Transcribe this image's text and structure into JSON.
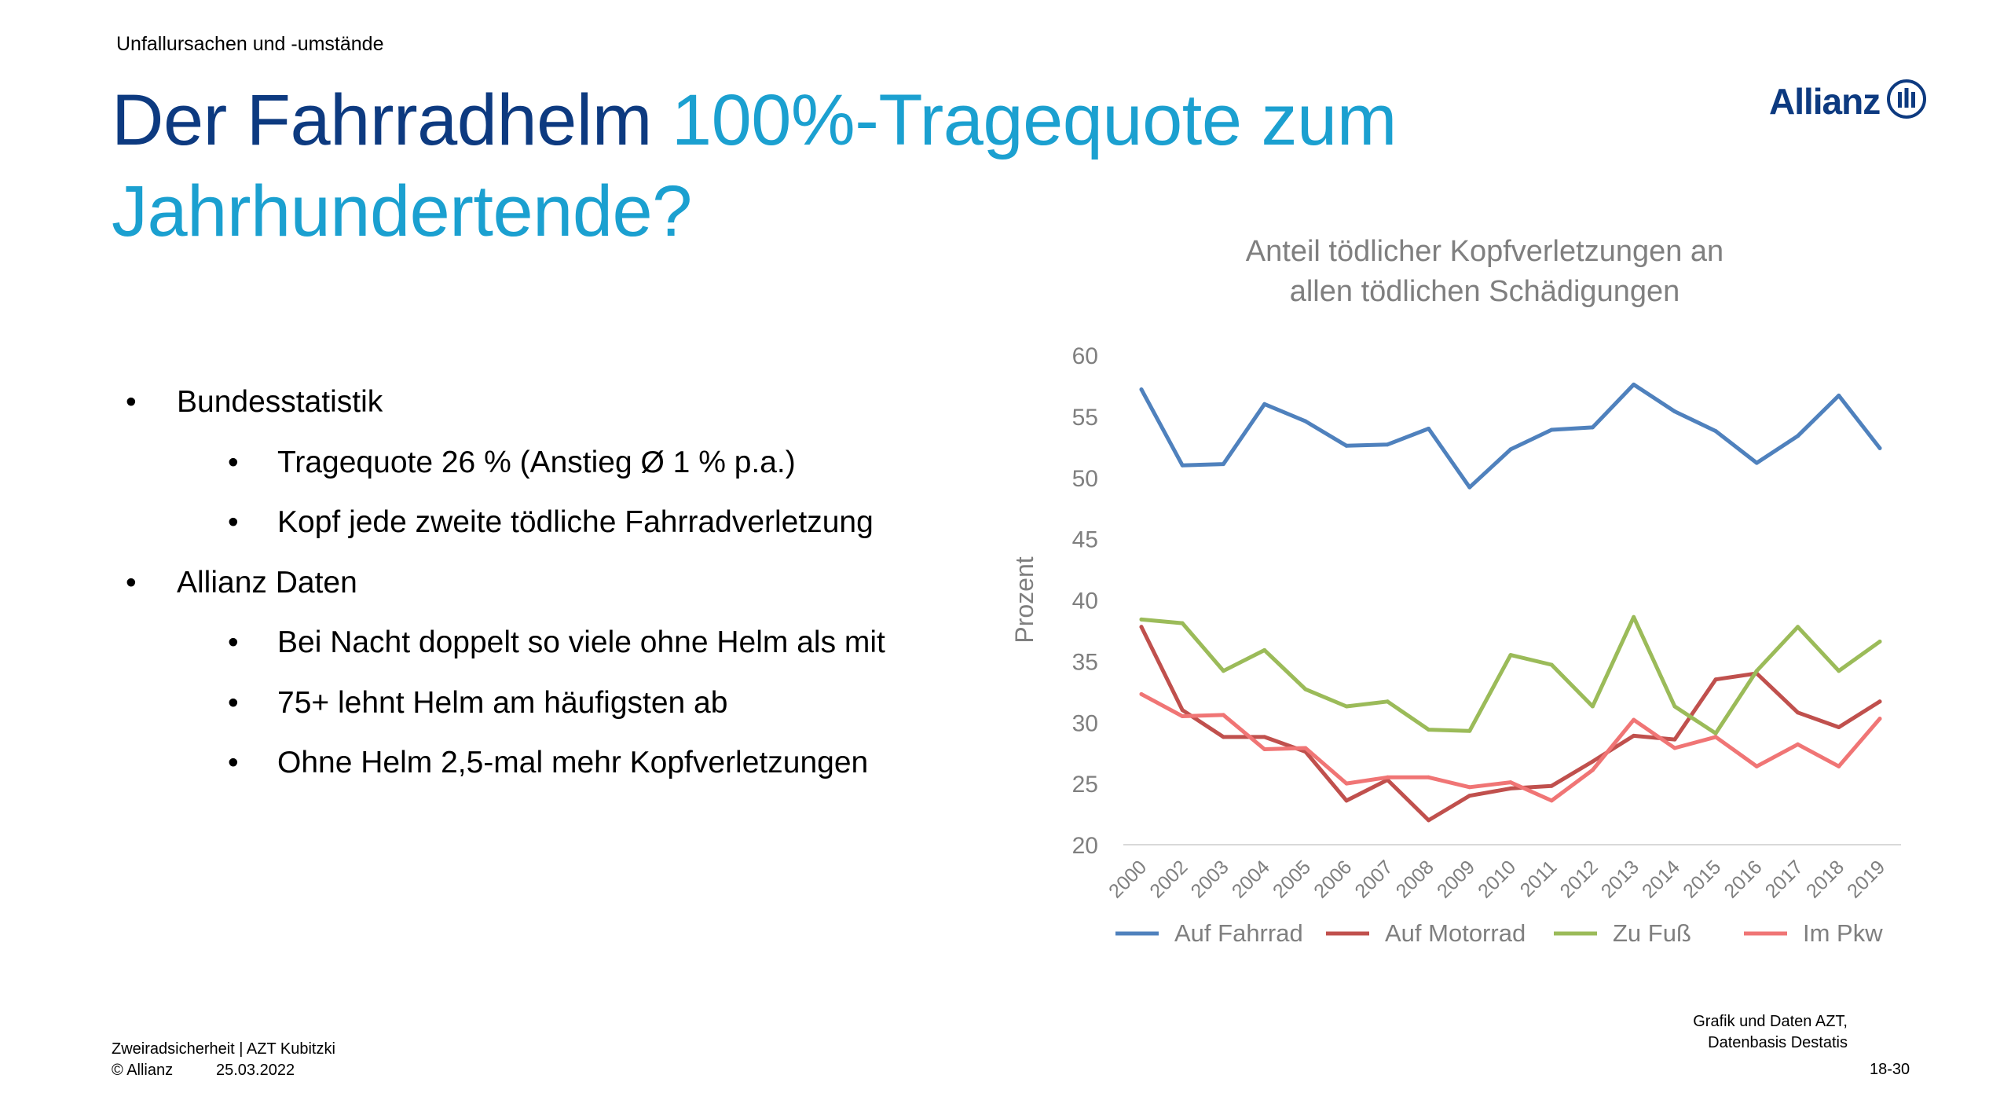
{
  "header": {
    "section_label": "Unfallursachen und -umstände",
    "title_part1": "Der Fahrradhelm ",
    "title_part2": "100%-Tragequote zum",
    "title_part3": "Jahrhundertende?"
  },
  "logo": {
    "text": "Allianz",
    "icon": "allianz-eagle-icon"
  },
  "bullets": [
    {
      "level": 1,
      "text": "Bundesstatistik"
    },
    {
      "level": 2,
      "text": "Tragequote 26 % (Anstieg Ø 1 % p.a.)"
    },
    {
      "level": 2,
      "text": "Kopf jede zweite tödliche Fahrradverletzung"
    },
    {
      "level": 1,
      "text": "Allianz Daten"
    },
    {
      "level": 2,
      "text": "Bei Nacht doppelt so viele ohne Helm als mit"
    },
    {
      "level": 2,
      "text": "75+ lehnt Helm am häufigsten ab"
    },
    {
      "level": 2,
      "text": "Ohne Helm 2,5-mal mehr Kopfverletzungen"
    }
  ],
  "bullet_symbol": "•",
  "chart_data": {
    "type": "line",
    "title": "Anteil tödlicher Kopfverletzungen an allen tödlichen Schädigungen",
    "title_line1": "Anteil tödlicher Kopfverletzungen an",
    "title_line2": "allen tödlichen Schädigungen",
    "xlabel": "",
    "ylabel": "Prozent",
    "ylim": [
      20,
      60
    ],
    "yticks": [
      "20",
      "25",
      "30",
      "35",
      "40",
      "45",
      "50",
      "55",
      "60"
    ],
    "grid": false,
    "legend_position": "bottom",
    "categories": [
      "2000",
      "2002",
      "2003",
      "2004",
      "2005",
      "2006",
      "2007",
      "2008",
      "2009",
      "2010",
      "2011",
      "2012",
      "2013",
      "2014",
      "2015",
      "2016",
      "2017",
      "2018",
      "2019"
    ],
    "series": [
      {
        "name": "Auf Fahrrad",
        "color": "#4f81bd",
        "values": [
          57.2,
          51.0,
          51.1,
          56.0,
          54.6,
          52.6,
          52.7,
          54.0,
          49.2,
          52.3,
          53.9,
          54.1,
          57.6,
          55.4,
          53.8,
          51.2,
          53.4,
          56.7,
          52.4
        ]
      },
      {
        "name": "Auf Motorrad",
        "color": "#c0504d",
        "values": [
          37.8,
          31.0,
          28.8,
          28.8,
          27.6,
          23.6,
          25.3,
          22.0,
          24.0,
          24.6,
          24.8,
          26.8,
          28.9,
          28.6,
          33.5,
          34.0,
          30.8,
          29.6,
          31.7
        ]
      },
      {
        "name": "Zu Fuß",
        "color": "#9bbb59",
        "values": [
          38.4,
          38.1,
          34.2,
          35.9,
          32.7,
          31.3,
          31.7,
          29.4,
          29.3,
          35.5,
          34.7,
          31.3,
          38.6,
          31.3,
          29.1,
          34.2,
          37.8,
          34.2,
          36.6
        ]
      },
      {
        "name": "Im Pkw",
        "color": "#f07575",
        "values": [
          32.3,
          30.5,
          30.6,
          27.8,
          27.9,
          25.0,
          25.5,
          25.5,
          24.7,
          25.1,
          23.6,
          26.1,
          30.2,
          27.9,
          28.8,
          26.4,
          28.2,
          26.4,
          30.3
        ]
      }
    ],
    "axis_color": "#d9d9d9",
    "text_color": "#7f7f7f"
  },
  "footer": {
    "line1": "Zweiradsicherheit | AZT Kubitzki",
    "copyright": "© Allianz",
    "date": "25.03.2022",
    "source_line1": "Grafik und Daten AZT,",
    "source_line2": "Datenbasis Destatis",
    "page": "18-30"
  },
  "colors": {
    "title_dark": "#0d3a80",
    "title_light": "#1ba0d0"
  }
}
